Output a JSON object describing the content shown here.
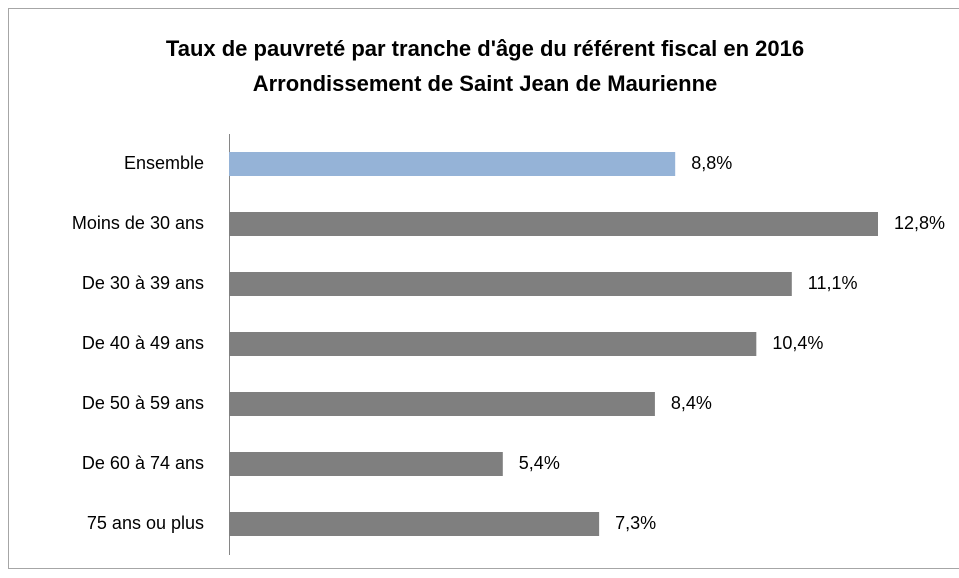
{
  "chart_data": {
    "type": "bar",
    "orientation": "horizontal",
    "title": [
      "Taux de pauvreté par tranche d'âge du référent fiscal en 2016",
      "Arrondissement de Saint Jean de Maurienne"
    ],
    "categories": [
      "Ensemble",
      "Moins de 30 ans",
      "De 30 à 39 ans",
      "De 40 à 49 ans",
      "De 50 à 59 ans",
      "De 60 à 74 ans",
      "75 ans ou plus"
    ],
    "values": [
      8.8,
      12.8,
      11.1,
      10.4,
      8.4,
      5.4,
      7.3
    ],
    "value_labels": [
      "8,8%",
      "12,8%",
      "11,1%",
      "10,4%",
      "8,4%",
      "5,4%",
      "7,3%"
    ],
    "colors": [
      "#95b3d7",
      "#7f7f7f",
      "#7f7f7f",
      "#7f7f7f",
      "#7f7f7f",
      "#7f7f7f",
      "#7f7f7f"
    ],
    "grid": false
  }
}
